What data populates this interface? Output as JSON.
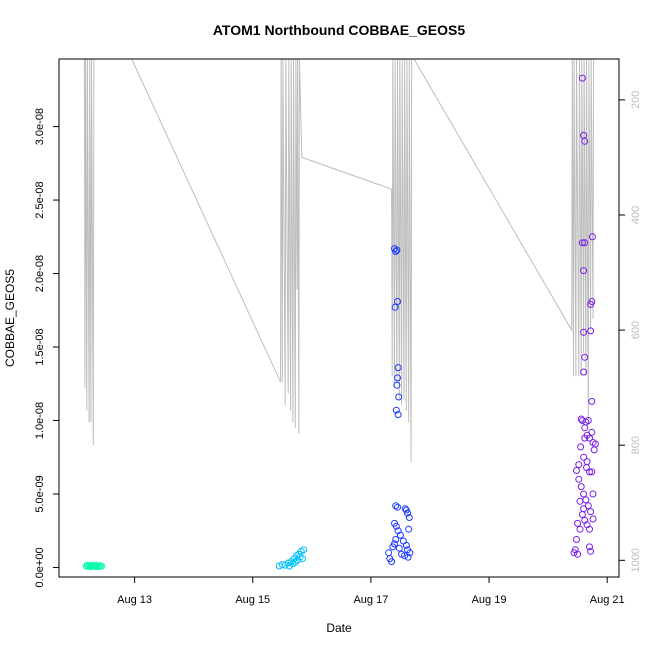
{
  "chart_data": {
    "type": "scatter",
    "title": "ATOM1 Northbound COBBAE_GEOS5",
    "xlabel": "Date",
    "ylabel": "COBBAE_GEOS5",
    "x_ticks": [
      "Aug 13",
      "Aug 15",
      "Aug 17",
      "Aug 19",
      "Aug 21"
    ],
    "x_tick_days": [
      13,
      15,
      17,
      19,
      21
    ],
    "x_range_days": [
      11.72,
      21.2
    ],
    "y_range": [
      -6.5e-10,
      3.46e-08
    ],
    "y_ticks": [
      0,
      5e-09,
      1e-08,
      1.5e-08,
      2e-08,
      2.5e-08,
      3e-08
    ],
    "y_tick_labels": [
      "0.0e+00",
      "5.0e-09",
      "1.0e-08",
      "1.5e-08",
      "2.0e-08",
      "2.5e-08",
      "3.0e-08"
    ],
    "y2_label": "",
    "y2_ticks": [
      200,
      400,
      600,
      800,
      1000
    ],
    "y2_tick_labels": [
      "200",
      "400",
      "600",
      "800",
      "1000"
    ],
    "y2_range": [
      1029,
      129
    ],
    "y2_reversed": true,
    "grid": false,
    "series": [
      {
        "color": "#00FFAA",
        "points": [
          [
            12.18,
            1e-10
          ],
          [
            12.2,
            1.5e-10
          ],
          [
            12.22,
            8e-11
          ],
          [
            12.24,
            1.2e-10
          ],
          [
            12.26,
            5e-11
          ],
          [
            12.28,
            1.4e-10
          ],
          [
            12.3,
            9e-11
          ],
          [
            12.32,
            1.1e-10
          ],
          [
            12.34,
            7e-11
          ],
          [
            12.36,
            1.3e-10
          ],
          [
            12.38,
            6e-11
          ],
          [
            12.4,
            1e-10
          ],
          [
            12.42,
            1.2e-10
          ],
          [
            12.44,
            8e-11
          ]
        ]
      },
      {
        "color": "#00BFFF",
        "points": [
          [
            15.45,
            1e-10
          ],
          [
            15.5,
            2e-10
          ],
          [
            15.55,
            1.5e-10
          ],
          [
            15.6,
            3e-10
          ],
          [
            15.62,
            1e-10
          ],
          [
            15.65,
            4e-10
          ],
          [
            15.68,
            2.5e-10
          ],
          [
            15.7,
            6e-10
          ],
          [
            15.72,
            3.5e-10
          ],
          [
            15.74,
            8e-10
          ],
          [
            15.76,
            5e-10
          ],
          [
            15.78,
            9e-10
          ],
          [
            15.8,
            7e-10
          ],
          [
            15.82,
            1.1e-09
          ],
          [
            15.84,
            6e-10
          ],
          [
            15.86,
            1.2e-09
          ]
        ]
      },
      {
        "color": "#1A3CFF",
        "points": [
          [
            17.4,
            2.17e-08
          ],
          [
            17.42,
            2.15e-08
          ],
          [
            17.44,
            2.16e-08
          ],
          [
            17.41,
            1.77e-08
          ],
          [
            17.45,
            1.81e-08
          ],
          [
            17.46,
            1.36e-08
          ],
          [
            17.45,
            1.29e-08
          ],
          [
            17.44,
            1.24e-08
          ],
          [
            17.43,
            1.07e-08
          ],
          [
            17.46,
            1.04e-08
          ],
          [
            17.47,
            1.16e-08
          ],
          [
            17.42,
            4.2e-09
          ],
          [
            17.45,
            4.1e-09
          ],
          [
            17.6,
            3.9e-09
          ],
          [
            17.62,
            3.7e-09
          ],
          [
            17.58,
            4e-09
          ],
          [
            17.4,
            3e-09
          ],
          [
            17.43,
            2.8e-09
          ],
          [
            17.46,
            2.5e-09
          ],
          [
            17.5,
            2.2e-09
          ],
          [
            17.55,
            1.8e-09
          ],
          [
            17.6,
            1.5e-09
          ],
          [
            17.62,
            1.2e-09
          ],
          [
            17.3,
            1e-09
          ],
          [
            17.32,
            6e-10
          ],
          [
            17.35,
            4e-10
          ],
          [
            17.37,
            1.4e-09
          ],
          [
            17.4,
            1.6e-09
          ],
          [
            17.42,
            1.9e-09
          ],
          [
            17.48,
            1.3e-09
          ],
          [
            17.52,
            9e-10
          ],
          [
            17.57,
            8e-10
          ],
          [
            17.63,
            7e-10
          ],
          [
            17.66,
            1e-09
          ],
          [
            17.65,
            3.4e-09
          ],
          [
            17.64,
            2.6e-09
          ]
        ]
      },
      {
        "color": "#7A1FE6",
        "points": [
          [
            20.58,
            3.33e-08
          ],
          [
            20.6,
            2.94e-08
          ],
          [
            20.62,
            2.9e-08
          ],
          [
            20.58,
            2.21e-08
          ],
          [
            20.62,
            2.21e-08
          ],
          [
            20.75,
            2.25e-08
          ],
          [
            20.6,
            2.02e-08
          ],
          [
            20.72,
            1.79e-08
          ],
          [
            20.74,
            1.81e-08
          ],
          [
            20.6,
            1.6e-08
          ],
          [
            20.72,
            1.61e-08
          ],
          [
            20.62,
            1.43e-08
          ],
          [
            20.6,
            1.33e-08
          ],
          [
            20.74,
            1.13e-08
          ],
          [
            20.58,
            1e-08
          ],
          [
            20.62,
            9.5e-09
          ],
          [
            20.66,
            9e-09
          ],
          [
            20.7,
            8.8e-09
          ],
          [
            20.74,
            9.2e-09
          ],
          [
            20.76,
            8.5e-09
          ],
          [
            20.55,
            8.2e-09
          ],
          [
            20.6,
            7.5e-09
          ],
          [
            20.65,
            6.8e-09
          ],
          [
            20.7,
            6.5e-09
          ],
          [
            20.48,
            6.6e-09
          ],
          [
            20.52,
            6e-09
          ],
          [
            20.56,
            5.5e-09
          ],
          [
            20.6,
            5e-09
          ],
          [
            20.64,
            4.6e-09
          ],
          [
            20.68,
            4.2e-09
          ],
          [
            20.72,
            3.8e-09
          ],
          [
            20.76,
            3.3e-09
          ],
          [
            20.5,
            3e-09
          ],
          [
            20.54,
            2.6e-09
          ],
          [
            20.58,
            3.6e-09
          ],
          [
            20.62,
            3.2e-09
          ],
          [
            20.66,
            2.9e-09
          ],
          [
            20.7,
            2.6e-09
          ],
          [
            20.48,
            1.9e-09
          ],
          [
            20.46,
            1.2e-09
          ],
          [
            20.44,
            1e-09
          ],
          [
            20.5,
            9e-10
          ],
          [
            20.72,
            1.1e-09
          ],
          [
            20.7,
            1.4e-09
          ],
          [
            20.74,
            6.5e-09
          ],
          [
            20.78,
            8e-09
          ],
          [
            20.8,
            8.4e-09
          ],
          [
            20.56,
            1.01e-08
          ],
          [
            20.64,
            9.9e-09
          ],
          [
            20.68,
            1e-08
          ],
          [
            20.52,
            7e-09
          ],
          [
            20.6,
            4e-09
          ],
          [
            20.76,
            5e-09
          ],
          [
            20.54,
            4.5e-09
          ],
          [
            20.62,
            8.8e-09
          ],
          [
            20.66,
            7.2e-09
          ]
        ]
      }
    ],
    "gray_line": {
      "color": "#bdbdbd",
      "points": [
        [
          12.15,
          129
        ],
        [
          12.16,
          700
        ],
        [
          12.17,
          129
        ],
        [
          12.19,
          740
        ],
        [
          12.2,
          129
        ],
        [
          12.23,
          760
        ],
        [
          12.24,
          129
        ],
        [
          12.26,
          760
        ],
        [
          12.27,
          129
        ],
        [
          12.3,
          800
        ],
        [
          12.31,
          129
        ],
        [
          12.33,
          129
        ],
        [
          12.95,
          129
        ],
        [
          15.47,
          690
        ],
        [
          15.48,
          129
        ],
        [
          15.5,
          690
        ],
        [
          15.51,
          129
        ],
        [
          15.55,
          730
        ],
        [
          15.56,
          129
        ],
        [
          15.6,
          710
        ],
        [
          15.61,
          129
        ],
        [
          15.64,
          740
        ],
        [
          15.65,
          129
        ],
        [
          15.68,
          760
        ],
        [
          15.69,
          129
        ],
        [
          15.72,
          770
        ],
        [
          15.73,
          129
        ],
        [
          15.75,
          530
        ],
        [
          15.76,
          129
        ],
        [
          15.78,
          780
        ],
        [
          15.79,
          129
        ],
        [
          15.83,
          300
        ],
        [
          17.35,
          355
        ],
        [
          17.36,
          680
        ],
        [
          17.37,
          129
        ],
        [
          17.4,
          700
        ],
        [
          17.41,
          129
        ],
        [
          17.44,
          690
        ],
        [
          17.45,
          129
        ],
        [
          17.48,
          720
        ],
        [
          17.49,
          129
        ],
        [
          17.52,
          730
        ],
        [
          17.53,
          129
        ],
        [
          17.56,
          720
        ],
        [
          17.57,
          129
        ],
        [
          17.6,
          740
        ],
        [
          17.61,
          129
        ],
        [
          17.64,
          760
        ],
        [
          17.65,
          129
        ],
        [
          17.68,
          830
        ],
        [
          17.69,
          129
        ],
        [
          17.73,
          129
        ],
        [
          20.4,
          600
        ],
        [
          20.41,
          129
        ],
        [
          20.43,
          680
        ],
        [
          20.44,
          129
        ],
        [
          20.47,
          680
        ],
        [
          20.48,
          129
        ],
        [
          20.52,
          680
        ],
        [
          20.53,
          129
        ],
        [
          20.56,
          680
        ],
        [
          20.57,
          129
        ],
        [
          20.6,
          640
        ],
        [
          20.61,
          129
        ],
        [
          20.64,
          680
        ],
        [
          20.65,
          129
        ],
        [
          20.68,
          760
        ],
        [
          20.69,
          129
        ],
        [
          20.72,
          600
        ],
        [
          20.73,
          129
        ],
        [
          20.76,
          580
        ],
        [
          20.77,
          129
        ]
      ]
    }
  }
}
